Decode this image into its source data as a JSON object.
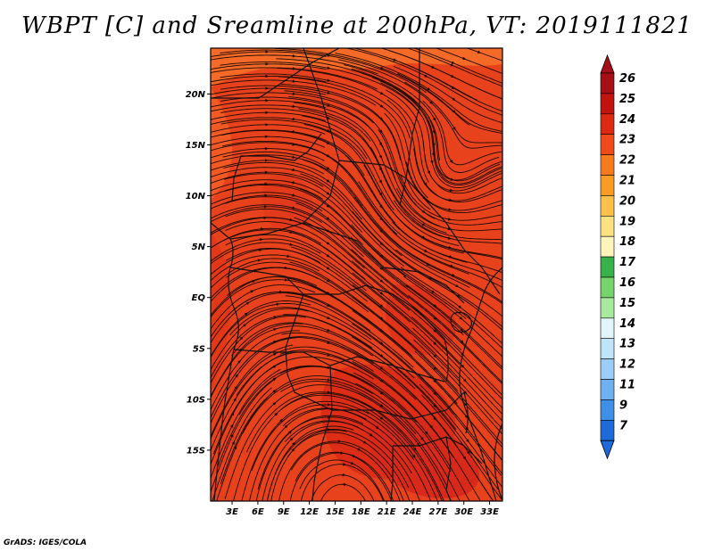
{
  "title": "WBPT [C] and Sreamline at 200hPa, VT: 2019111821",
  "credit": "GrADS: IGES/COLA",
  "map": {
    "lat_labels": [
      "20N",
      "15N",
      "10N",
      "5N",
      "EQ",
      "5S",
      "10S",
      "15S"
    ],
    "lat_values": [
      20,
      15,
      10,
      5,
      0,
      -5,
      -10,
      -15
    ],
    "lon_labels": [
      "3E",
      "6E",
      "9E",
      "12E",
      "15E",
      "18E",
      "21E",
      "24E",
      "27E",
      "30E",
      "33E"
    ],
    "lon_values": [
      3,
      6,
      9,
      12,
      15,
      18,
      21,
      24,
      27,
      30,
      33
    ],
    "lon_range": [
      0.5,
      34.5
    ],
    "lat_range": [
      -20,
      24.5
    ],
    "field_description_colors": {
      "dominant": "#e8421d",
      "warm": "#dd2d16",
      "cool": "#f15a22",
      "north": "#f46a26",
      "boundary": "#1a1a1a",
      "streamline": "#1f0a04"
    }
  },
  "colorbar": {
    "labels": [
      "26",
      "25",
      "24",
      "23",
      "22",
      "21",
      "20",
      "19",
      "18",
      "17",
      "16",
      "15",
      "14",
      "13",
      "12",
      "11",
      "9",
      "7"
    ],
    "colors": [
      "#a50f15",
      "#c2140e",
      "#dc2a12",
      "#ef4a1b",
      "#f77a1e",
      "#fb9a24",
      "#fdc04a",
      "#fde282",
      "#fdf5bc",
      "#37b24a",
      "#77d36c",
      "#a9e9a0",
      "#dff5f7",
      "#bfe3fb",
      "#9ccdf7",
      "#6fb0f0",
      "#3e8fe5",
      "#1d6ad8"
    ],
    "top_arrow_color": "#a50f15",
    "bottom_arrow_color": "#1d6ad8"
  }
}
